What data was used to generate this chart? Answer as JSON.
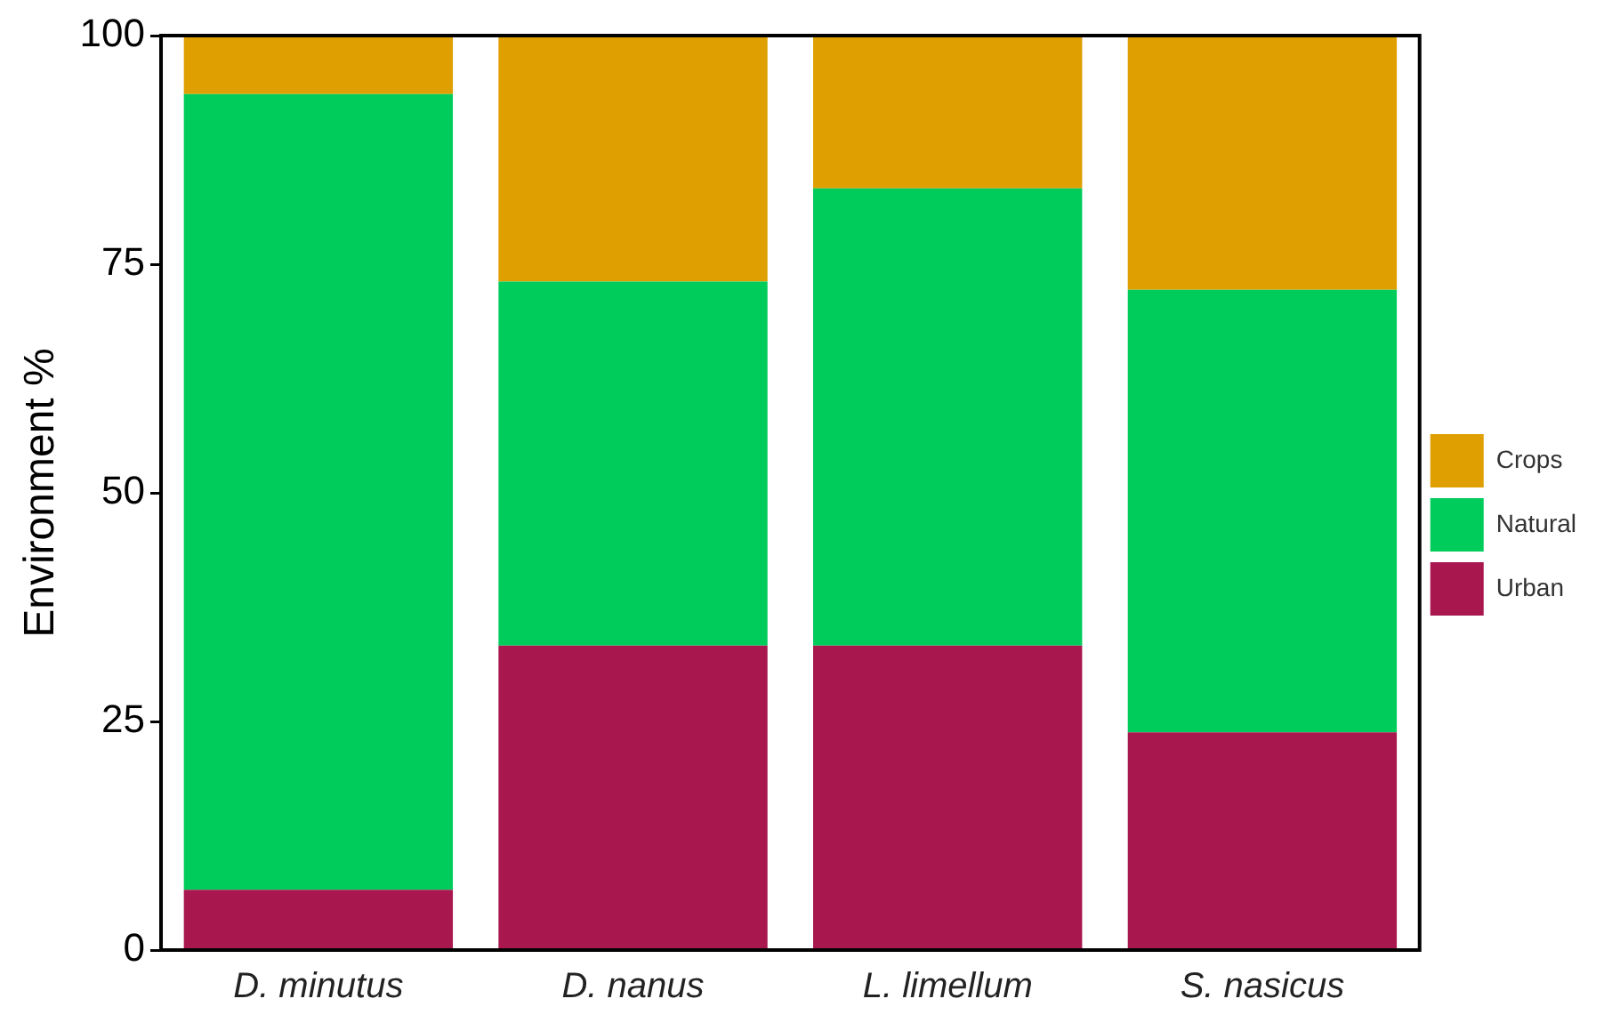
{
  "chart_data": {
    "type": "bar",
    "stacked": true,
    "ylabel": "Environment %",
    "categories": [
      "D. minutus",
      "D. nanus",
      "L. limellum",
      "S. nasicus"
    ],
    "series": [
      {
        "name": "Urban",
        "color": "#a8184f",
        "values": [
          6.6,
          33.3,
          33.3,
          23.8
        ]
      },
      {
        "name": "Natural",
        "color": "#00cc5c",
        "values": [
          87,
          39.8,
          50,
          48.4
        ]
      },
      {
        "name": "Crops",
        "color": "#e09f00",
        "values": [
          6.4,
          26.9,
          16.7,
          27.8
        ]
      }
    ],
    "ylim": [
      0,
      100
    ],
    "yticks": [
      0,
      25,
      50,
      75,
      100
    ],
    "grid": false,
    "legend": "right"
  }
}
